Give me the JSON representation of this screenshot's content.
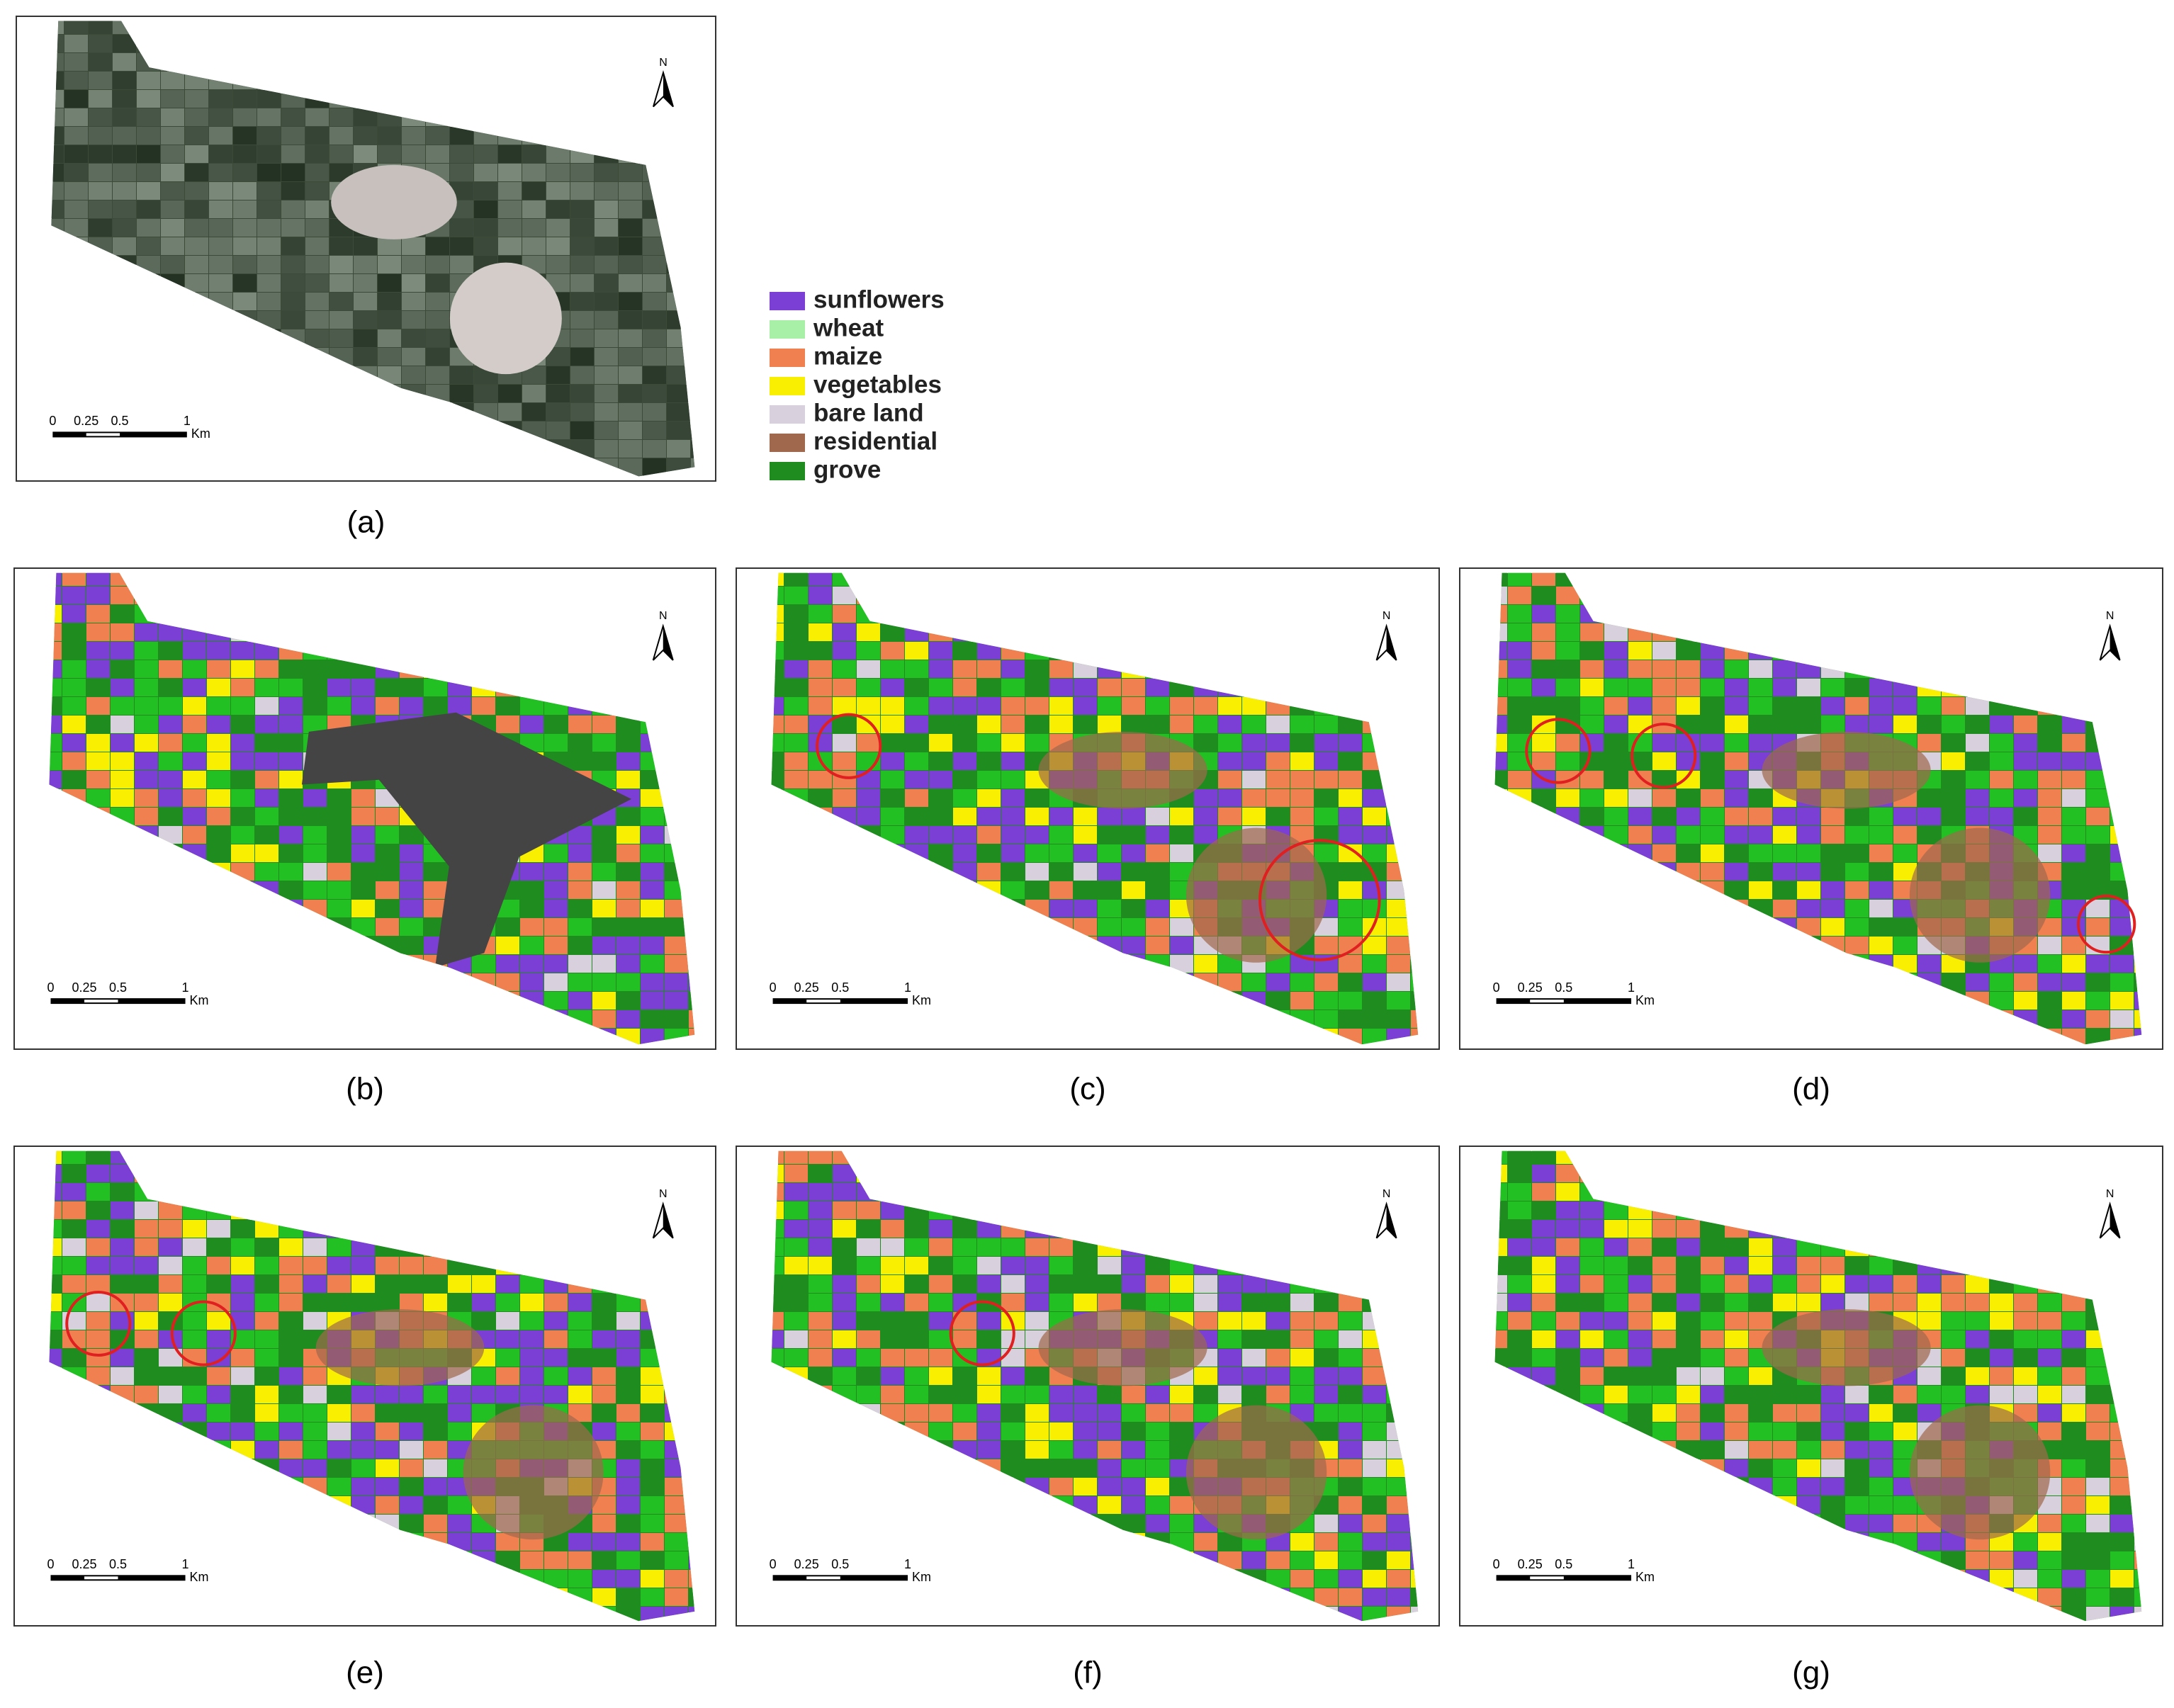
{
  "legend": [
    {
      "label": "sunflowers",
      "color": "#7b3fd6"
    },
    {
      "label": "wheat",
      "color": "#a8f0a8"
    },
    {
      "label": "maize",
      "color": "#f08050"
    },
    {
      "label": "vegetables",
      "color": "#f8f000"
    },
    {
      "label": "bare land",
      "color": "#d8d0dc"
    },
    {
      "label": "residential",
      "color": "#a0684c"
    },
    {
      "label": "grove",
      "color": "#1e8c1e"
    }
  ],
  "panel_labels": [
    "(a)",
    "(b)",
    "(c)",
    "(d)",
    "(e)",
    "(f)",
    "(g)"
  ],
  "scale_bar": {
    "ticks": [
      "0",
      "0.25",
      "0.5",
      "1"
    ],
    "unit": "Km"
  },
  "north": "N"
}
